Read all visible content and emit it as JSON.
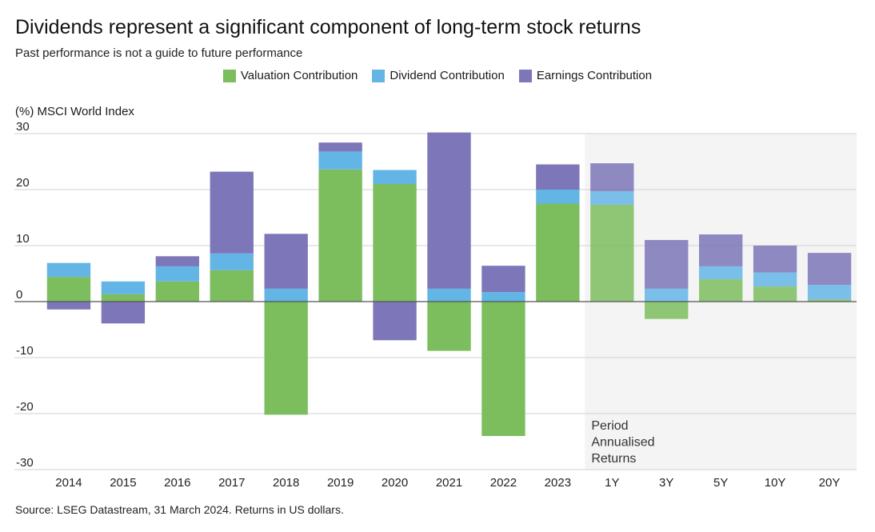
{
  "header": {
    "title": "Dividends represent a significant component of long-term stock returns",
    "subtitle": "Past performance is not a guide to future performance"
  },
  "unit_label": "(%) MSCI World Index",
  "source": "Source: LSEG Datastream, 31 March 2024. Returns in US dollars.",
  "colors": {
    "valuation": "#7cbd5e",
    "dividend": "#63b5e6",
    "earnings": "#7d76b9",
    "shaded_background": "#f4f4f4"
  },
  "chart_data": {
    "type": "bar",
    "stacked": true,
    "categories": [
      "2014",
      "2015",
      "2016",
      "2017",
      "2018",
      "2019",
      "2020",
      "2021",
      "2022",
      "2023",
      "1Y",
      "3Y",
      "5Y",
      "10Y",
      "20Y"
    ],
    "series": [
      {
        "name": "Valuation Contribution",
        "values": [
          4.4,
          1.3,
          3.6,
          5.6,
          -20.2,
          23.6,
          21.0,
          -8.8,
          -24.0,
          17.5,
          17.3,
          -3.1,
          4.0,
          2.7,
          0.4
        ]
      },
      {
        "name": "Dividend Contribution",
        "values": [
          2.5,
          2.3,
          2.7,
          3.0,
          2.3,
          3.2,
          2.5,
          2.3,
          1.7,
          2.5,
          2.4,
          2.3,
          2.3,
          2.5,
          2.6
        ]
      },
      {
        "name": "Earnings Contribution",
        "values": [
          -1.4,
          -3.9,
          1.8,
          14.6,
          9.8,
          1.6,
          -6.9,
          27.9,
          4.7,
          4.5,
          5.0,
          8.7,
          5.7,
          4.8,
          5.7
        ]
      }
    ],
    "ylim": [
      -30,
      30
    ],
    "yticks": [
      -30,
      -20,
      -10,
      0,
      10,
      20,
      30
    ],
    "grid": true,
    "legend_position": "top",
    "annotation": {
      "lines": [
        "Period",
        "Annualised",
        "Returns"
      ],
      "shaded_from_category": "1Y"
    }
  }
}
